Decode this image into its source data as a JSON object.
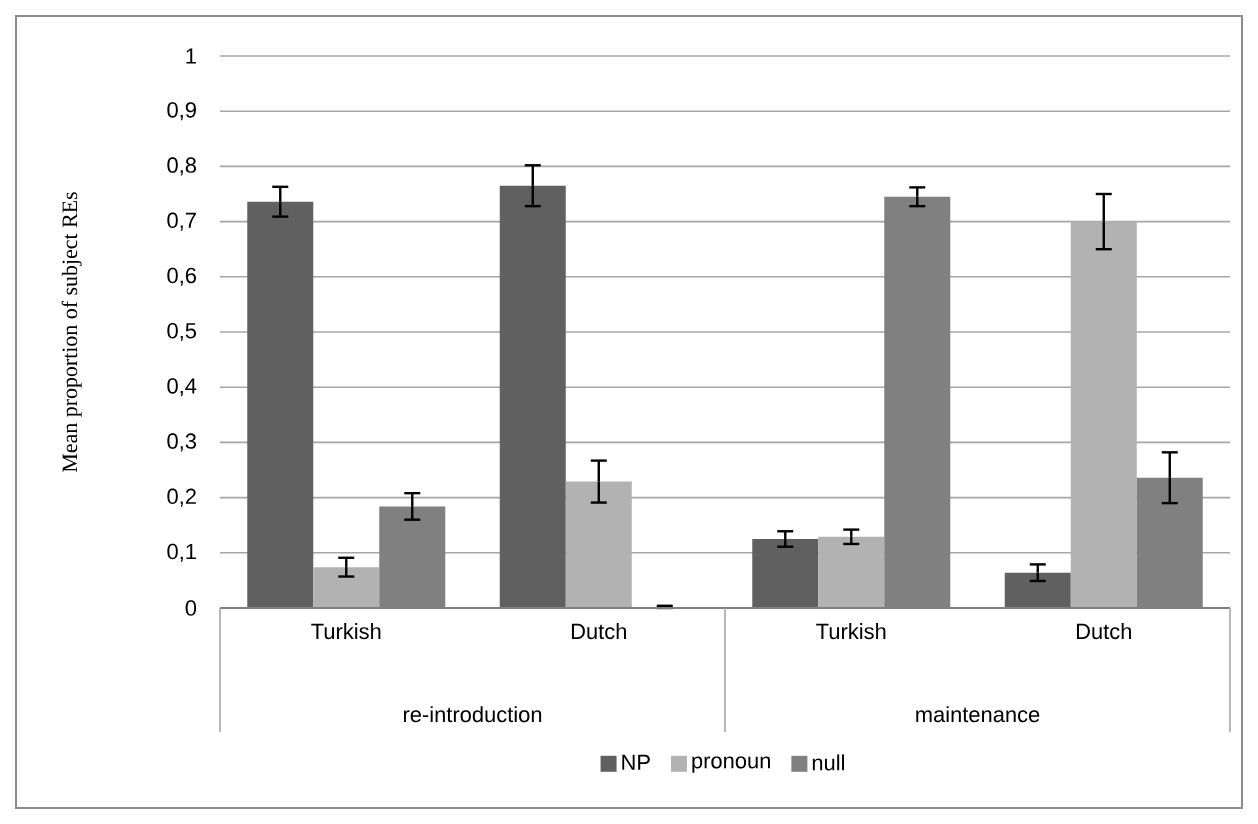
{
  "chart_data": {
    "type": "bar",
    "ylabel": "Mean proportion of subject REs",
    "categories": [
      "Turkish",
      "Dutch",
      "Turkish",
      "Dutch"
    ],
    "annotations": [
      "re-introduction",
      "maintenance"
    ],
    "series": [
      {
        "name": "NP",
        "color": "#606060",
        "values": [
          0.736,
          0.765,
          0.125,
          0.064
        ],
        "errors": [
          0.027,
          0.037,
          0.014,
          0.015
        ]
      },
      {
        "name": "pronoun",
        "color": "#b2b2b2",
        "values": [
          0.074,
          0.229,
          0.129,
          0.7
        ],
        "errors": [
          0.017,
          0.038,
          0.013,
          0.05
        ]
      },
      {
        "name": "null",
        "color": "#808080",
        "values": [
          0.184,
          0.002,
          0.745,
          0.236
        ],
        "errors": [
          0.024,
          0.002,
          0.017,
          0.046
        ]
      }
    ],
    "ylim": [
      0,
      1
    ],
    "yticks": [
      0,
      {
        "value": 0.1,
        "label": "0,1"
      },
      {
        "value": 0.2,
        "label": "0,2"
      },
      {
        "value": 0.3,
        "label": "0,3"
      },
      {
        "value": 0.4,
        "label": "0,4"
      },
      {
        "value": 0.5,
        "label": "0,5"
      },
      {
        "value": 0.6,
        "label": "0,6"
      },
      {
        "value": 0.7,
        "label": "0,7"
      },
      {
        "value": 0.8,
        "label": "0,8"
      },
      {
        "value": 0.9,
        "label": "0,9"
      },
      1
    ],
    "grid": "y",
    "legend": "bottom"
  }
}
